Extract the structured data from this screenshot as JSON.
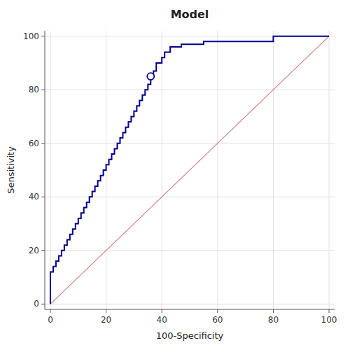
{
  "chart_data": {
    "type": "line",
    "title": "Model",
    "xlabel": "100-Specificity",
    "ylabel": "Sensitivity",
    "xlim": [
      -2,
      102
    ],
    "ylim": [
      -2,
      102
    ],
    "xticks": [
      0,
      20,
      40,
      60,
      80,
      100
    ],
    "yticks": [
      0,
      20,
      40,
      60,
      80,
      100
    ],
    "grid": true,
    "series": [
      {
        "type": "line",
        "color": "#d08080",
        "x": [
          0,
          100
        ],
        "values": [
          0,
          100
        ]
      },
      {
        "type": "step",
        "color": "#00008B",
        "x": [
          0,
          0,
          0,
          0,
          0,
          0,
          0,
          1,
          1,
          2,
          2,
          3,
          3,
          4,
          4,
          5,
          5,
          6,
          6,
          7,
          7,
          8,
          8,
          9,
          9,
          10,
          10,
          11,
          11,
          12,
          12,
          13,
          13,
          14,
          14,
          15,
          15,
          16,
          16,
          17,
          17,
          18,
          18,
          19,
          19,
          20,
          20,
          21,
          21,
          22,
          22,
          23,
          23,
          24,
          24,
          25,
          25,
          26,
          26,
          27,
          27,
          28,
          28,
          29,
          29,
          30,
          30,
          31,
          31,
          32,
          32,
          33,
          33,
          34,
          34,
          35,
          35,
          36,
          36,
          37,
          37,
          38,
          38,
          39,
          40,
          40,
          41,
          41,
          43,
          43,
          46,
          47,
          47,
          50,
          55,
          55,
          60,
          65,
          70,
          80,
          80,
          100
        ],
        "values": [
          0,
          2,
          4,
          6,
          8,
          10,
          12,
          12,
          14,
          14,
          16,
          16,
          18,
          18,
          20,
          20,
          22,
          22,
          24,
          24,
          26,
          26,
          28,
          28,
          30,
          30,
          32,
          32,
          34,
          34,
          36,
          36,
          38,
          38,
          40,
          40,
          42,
          42,
          44,
          44,
          46,
          46,
          48,
          48,
          50,
          50,
          52,
          52,
          54,
          54,
          56,
          56,
          58,
          58,
          60,
          60,
          62,
          62,
          64,
          64,
          66,
          66,
          68,
          68,
          70,
          70,
          72,
          72,
          74,
          74,
          76,
          76,
          78,
          78,
          80,
          80,
          82,
          82,
          85,
          85,
          87,
          87,
          90,
          90,
          90,
          92,
          92,
          94,
          94,
          96,
          96,
          96,
          97,
          97,
          97,
          98,
          98,
          98,
          98,
          98,
          100,
          100
        ]
      },
      {
        "type": "scatter",
        "color": "#00008B",
        "marker": "circle",
        "x": [
          36
        ],
        "values": [
          85
        ]
      }
    ]
  }
}
